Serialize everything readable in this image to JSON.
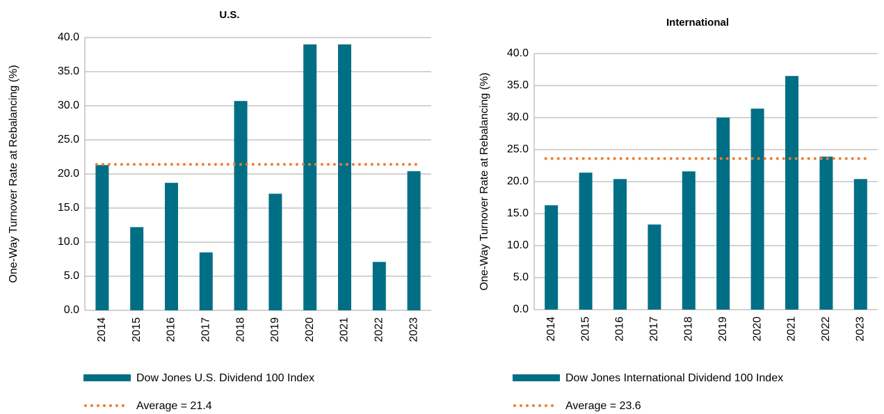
{
  "chart_data": [
    {
      "type": "bar",
      "title": "U.S.",
      "y_label": "One-Way Turnover Rate at Rebalancing (%)",
      "categories": [
        "2014",
        "2015",
        "2016",
        "2017",
        "2018",
        "2019",
        "2020",
        "2021",
        "2022",
        "2023"
      ],
      "series": [
        {
          "name": "Dow Jones U.S. Dividend 100 Index",
          "color": "#006f86",
          "values": [
            21.3,
            12.2,
            18.7,
            8.5,
            30.7,
            17.1,
            39.0,
            39.0,
            7.1,
            20.4
          ]
        }
      ],
      "average": {
        "name": "Average = 21.4",
        "value": 21.4,
        "color": "#ed7d31"
      },
      "ylim": [
        0,
        40
      ],
      "yticks": [
        {
          "value": 0,
          "label": "0.0"
        },
        {
          "value": 5,
          "label": "5.0"
        },
        {
          "value": 10,
          "label": "10.0"
        },
        {
          "value": 15,
          "label": "15.0"
        },
        {
          "value": 20,
          "label": "20.0"
        },
        {
          "value": 25,
          "label": "25.0"
        },
        {
          "value": 30,
          "label": "30.0"
        },
        {
          "value": 35,
          "label": "35.0"
        },
        {
          "value": 40,
          "label": "40.0"
        }
      ],
      "grid": true
    },
    {
      "type": "bar",
      "title": "International",
      "y_label": "One-Way Turnover Rate at Rebalancing (%)",
      "categories": [
        "2014",
        "2015",
        "2016",
        "2017",
        "2018",
        "2019",
        "2020",
        "2021",
        "2022",
        "2023"
      ],
      "series": [
        {
          "name": "Dow Jones International Dividend 100 Index",
          "color": "#006f86",
          "values": [
            16.3,
            21.4,
            20.4,
            13.3,
            21.6,
            30.0,
            31.4,
            36.5,
            23.9,
            20.4
          ]
        }
      ],
      "average": {
        "name": "Average = 23.6",
        "value": 23.6,
        "color": "#ed7d31"
      },
      "ylim": [
        0,
        40
      ],
      "yticks": [
        {
          "value": 0,
          "label": "0.0"
        },
        {
          "value": 5,
          "label": "5.0"
        },
        {
          "value": 10,
          "label": "10.0"
        },
        {
          "value": 15,
          "label": "15.0"
        },
        {
          "value": 20,
          "label": "20.0"
        },
        {
          "value": 25,
          "label": "25.0"
        },
        {
          "value": 30,
          "label": "30.0"
        },
        {
          "value": 35,
          "label": "35.0"
        },
        {
          "value": 40,
          "label": "40.0"
        }
      ],
      "grid": true
    }
  ]
}
